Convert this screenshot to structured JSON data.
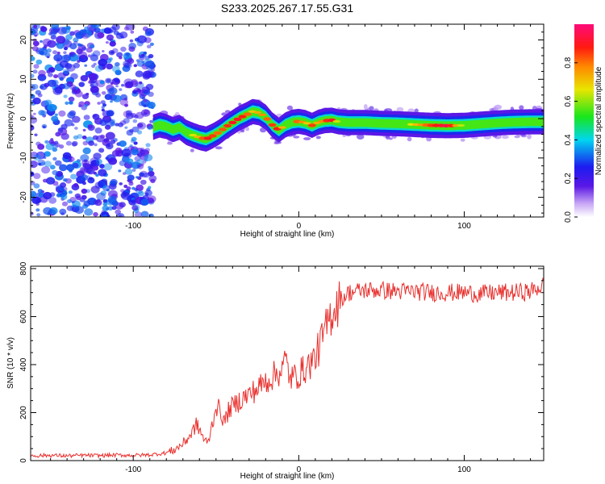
{
  "figure": {
    "title": "S233.2025.267.17.55.G31"
  },
  "chart_data": [
    {
      "type": "heatmap",
      "title": "S233.2025.267.17.55.G31",
      "xlabel": "Height of straight line (km)",
      "ylabel": "Frequency (Hz)",
      "xlim": [
        -162,
        148
      ],
      "ylim": [
        -25,
        24
      ],
      "xticks": [
        -100,
        0,
        100
      ],
      "yticks": [
        -20,
        -10,
        0,
        10,
        20
      ],
      "colorbar": {
        "label": "Normalized spectral amplitude",
        "range": [
          0,
          1
        ],
        "ticks": [
          "0.0",
          "0.2",
          "0.4",
          "0.6",
          "0.8"
        ],
        "tick_values": [
          0.0,
          0.2,
          0.4,
          0.6,
          0.8
        ]
      },
      "ridge": {
        "x": [
          -88,
          -84,
          -80,
          -76,
          -72,
          -68,
          -64,
          -60,
          -56,
          -52,
          -48,
          -44,
          -40,
          -36,
          -32,
          -28,
          -24,
          -20,
          -16,
          -12,
          -8,
          -4,
          0,
          4,
          8,
          12,
          16,
          20,
          24,
          30,
          40,
          50,
          60,
          70,
          80,
          90,
          100,
          110,
          120,
          130,
          140,
          148
        ],
        "y": [
          -2.2,
          -1.6,
          -2.0,
          -2.8,
          -2.2,
          -3.5,
          -4.2,
          -4.8,
          -5.2,
          -4.4,
          -3.4,
          -2.1,
          -1.0,
          0.1,
          0.9,
          1.8,
          1.5,
          0.4,
          -1.6,
          -2.9,
          -1.6,
          -0.9,
          -0.7,
          -1.0,
          -1.7,
          -0.9,
          -0.5,
          -0.4,
          -0.8,
          -1.0,
          -1.0,
          -1.2,
          -1.3,
          -1.5,
          -1.7,
          -1.8,
          -1.7,
          -1.4,
          -1.1,
          -0.9,
          -0.8,
          -0.8
        ],
        "amplitude": [
          0.25,
          0.3,
          0.3,
          0.25,
          0.35,
          0.5,
          0.65,
          0.75,
          0.9,
          0.85,
          0.8,
          0.85,
          0.9,
          0.9,
          0.85,
          0.7,
          0.75,
          0.8,
          0.85,
          0.9,
          0.55,
          0.55,
          0.9,
          0.65,
          0.85,
          0.7,
          0.85,
          0.9,
          0.55,
          0.5,
          0.55,
          0.55,
          0.5,
          0.7,
          0.85,
          0.95,
          0.55,
          0.5,
          0.55,
          0.5,
          0.5,
          0.5
        ]
      },
      "noise_region": {
        "x_range": [
          -162,
          -88
        ],
        "y_range": [
          -25,
          24
        ],
        "amplitude_range": [
          0.15,
          0.35
        ]
      }
    },
    {
      "type": "line",
      "xlabel": "Height of straight line (km)",
      "ylabel": "SNR (10 * v/v)",
      "xlim": [
        -162,
        148
      ],
      "ylim": [
        0,
        810
      ],
      "xticks": [
        -100,
        0,
        100
      ],
      "yticks": [
        0,
        200,
        400,
        600,
        800
      ],
      "series": [
        {
          "name": "SNR",
          "color": "#e8312e",
          "x": [
            -162,
            -150,
            -140,
            -130,
            -120,
            -110,
            -100,
            -90,
            -85,
            -80,
            -75,
            -70,
            -65,
            -62,
            -60,
            -57,
            -55,
            -52,
            -50,
            -47,
            -45,
            -42,
            -40,
            -35,
            -30,
            -25,
            -20,
            -15,
            -10,
            -8,
            -5,
            0,
            5,
            10,
            15,
            20,
            25,
            30,
            40,
            50,
            60,
            70,
            80,
            90,
            100,
            110,
            120,
            130,
            140,
            148
          ],
          "y": [
            20,
            22,
            20,
            22,
            21,
            23,
            22,
            24,
            28,
            32,
            45,
            70,
            110,
            150,
            130,
            85,
            70,
            160,
            230,
            200,
            160,
            215,
            225,
            255,
            275,
            300,
            330,
            355,
            380,
            420,
            340,
            360,
            390,
            430,
            520,
            620,
            670,
            700,
            710,
            710,
            705,
            705,
            700,
            700,
            700,
            695,
            700,
            700,
            705,
            730
          ]
        }
      ]
    }
  ]
}
